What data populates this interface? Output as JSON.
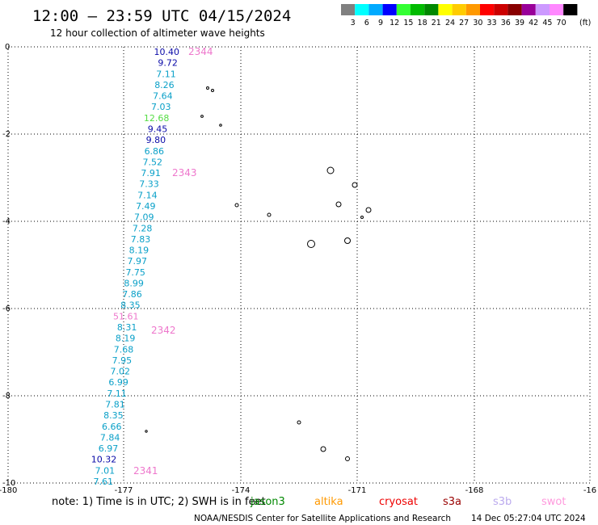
{
  "header": {
    "title": "12:00 – 23:59 UTC 04/15/2024",
    "subtitle": "12 hour collection of altimeter wave heights"
  },
  "legend": {
    "unit": "(ft)",
    "bins": [
      {
        "label": "3",
        "color": "#808080"
      },
      {
        "label": "6",
        "color": "#00ffff"
      },
      {
        "label": "9",
        "color": "#00aaff"
      },
      {
        "label": "12",
        "color": "#0000ff"
      },
      {
        "label": "15",
        "color": "#33ff33"
      },
      {
        "label": "18",
        "color": "#00bb00"
      },
      {
        "label": "21",
        "color": "#008800"
      },
      {
        "label": "24",
        "color": "#ffff00"
      },
      {
        "label": "27",
        "color": "#ffcc00"
      },
      {
        "label": "30",
        "color": "#ff9900"
      },
      {
        "label": "33",
        "color": "#ff0000"
      },
      {
        "label": "36",
        "color": "#cc0000"
      },
      {
        "label": "39",
        "color": "#880000"
      },
      {
        "label": "42",
        "color": "#990099"
      },
      {
        "label": "45",
        "color": "#cc99ff"
      },
      {
        "label": "70",
        "color": "#ff88ff"
      },
      {
        "label": "",
        "color": "#000000"
      }
    ]
  },
  "axes": {
    "lon_labels": [
      "-180",
      "-177",
      "-174",
      "-171",
      "-168",
      "-16"
    ],
    "lat_labels": [
      "0",
      "-2",
      "-4",
      "-6",
      "-8",
      "-10"
    ]
  },
  "track": {
    "measurement_colors": [
      "#0a0aa8",
      "#0aa0c8",
      "#55dd44",
      "#ee77cc"
    ],
    "labels": [
      {
        "text": "2344",
        "color": "#ee77cc"
      },
      {
        "text": "2343",
        "color": "#ee77cc"
      },
      {
        "text": "2342",
        "color": "#ee77cc"
      },
      {
        "text": "2341",
        "color": "#ee77cc"
      }
    ],
    "values": [
      {
        "text": "10.40",
        "c": 0
      },
      {
        "text": "9.72",
        "c": 0
      },
      {
        "text": "7.11",
        "c": 1
      },
      {
        "text": "8.26",
        "c": 1
      },
      {
        "text": "7.64",
        "c": 1
      },
      {
        "text": "7.03",
        "c": 1
      },
      {
        "text": "12.68",
        "c": 2
      },
      {
        "text": "9.45",
        "c": 0
      },
      {
        "text": "9.80",
        "c": 0
      },
      {
        "text": "6.86",
        "c": 1
      },
      {
        "text": "7.52",
        "c": 1
      },
      {
        "text": "7.91",
        "c": 1
      },
      {
        "text": "7.33",
        "c": 1
      },
      {
        "text": "7.14",
        "c": 1
      },
      {
        "text": "7.49",
        "c": 1
      },
      {
        "text": "7.09",
        "c": 1
      },
      {
        "text": "7.28",
        "c": 1
      },
      {
        "text": "7.83",
        "c": 1
      },
      {
        "text": "8.19",
        "c": 1
      },
      {
        "text": "7.97",
        "c": 1
      },
      {
        "text": "7.75",
        "c": 1
      },
      {
        "text": "8.99",
        "c": 1
      },
      {
        "text": "7.86",
        "c": 1
      },
      {
        "text": "8.35",
        "c": 1
      },
      {
        "text": "51.61",
        "c": 3
      },
      {
        "text": "8.31",
        "c": 1
      },
      {
        "text": "8.19",
        "c": 1
      },
      {
        "text": "7.68",
        "c": 1
      },
      {
        "text": "7.95",
        "c": 1
      },
      {
        "text": "7.02",
        "c": 1
      },
      {
        "text": "6.99",
        "c": 1
      },
      {
        "text": "7.11",
        "c": 1
      },
      {
        "text": "7.81",
        "c": 1
      },
      {
        "text": "8.35",
        "c": 1
      },
      {
        "text": "6.66",
        "c": 1
      },
      {
        "text": "7.84",
        "c": 1
      },
      {
        "text": "6.97",
        "c": 1
      },
      {
        "text": "10.32",
        "c": 0
      },
      {
        "text": "7.01",
        "c": 1
      },
      {
        "text": "7.61",
        "c": 1
      }
    ]
  },
  "footer": {
    "note": "note:  1) Time is in UTC;  2) SWH is in feet",
    "satellites": [
      {
        "name": "jason3",
        "color": "#008800"
      },
      {
        "name": "altika",
        "color": "#ff9900"
      },
      {
        "name": "cryosat",
        "color": "#ee0000"
      },
      {
        "name": "s3a",
        "color": "#990000"
      },
      {
        "name": "s3b",
        "color": "#bbaaee"
      },
      {
        "name": "swot",
        "color": "#ff99dd"
      }
    ],
    "credit": "NOAA/NESDIS Center for Satellite Applications and Research",
    "generated": "14 Dec 05:27:04 UTC 2024"
  }
}
